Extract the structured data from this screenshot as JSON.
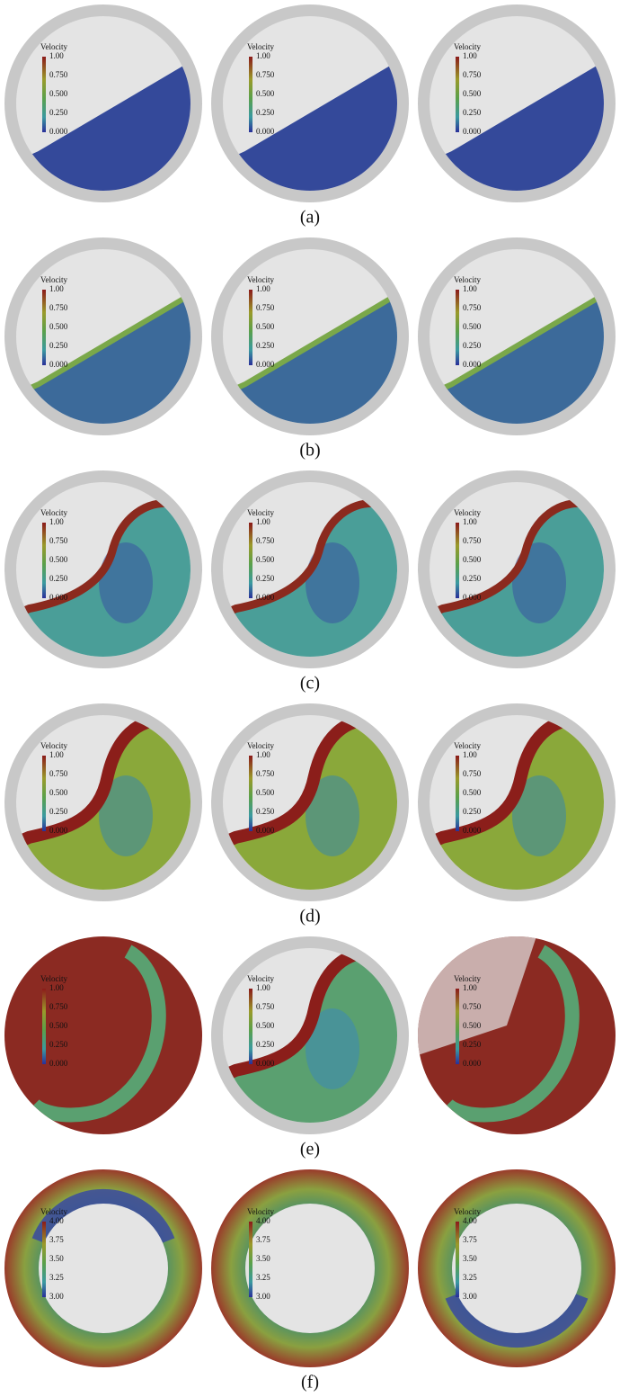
{
  "rows": [
    {
      "label": "(a)",
      "panels": [
        {
          "legend_title": "Velocity",
          "legend_ticks": [
            "1.00",
            "0.750",
            "0.500",
            "0.250",
            "0.000"
          ]
        },
        {
          "legend_title": "Velocity",
          "legend_ticks": [
            "1.00",
            "0.750",
            "0.500",
            "0.250",
            "0.000"
          ]
        },
        {
          "legend_title": "Velocity",
          "legend_ticks": [
            "1.00",
            "0.750",
            "0.500",
            "0.250",
            "0.000"
          ]
        }
      ]
    },
    {
      "label": "(b)",
      "panels": [
        {
          "legend_title": "Velocity",
          "legend_ticks": [
            "1.00",
            "0.750",
            "0.500",
            "0.250",
            "0.000"
          ]
        },
        {
          "legend_title": "Velocity",
          "legend_ticks": [
            "1.00",
            "0.750",
            "0.500",
            "0.250",
            "0.000"
          ]
        },
        {
          "legend_title": "Velocity",
          "legend_ticks": [
            "1.00",
            "0.750",
            "0.500",
            "0.250",
            "0.000"
          ]
        }
      ]
    },
    {
      "label": "(c)",
      "panels": [
        {
          "legend_title": "Velocity",
          "legend_ticks": [
            "1.00",
            "0.750",
            "0.500",
            "0.250",
            "0.000"
          ]
        },
        {
          "legend_title": "Velocity",
          "legend_ticks": [
            "1.00",
            "0.750",
            "0.500",
            "0.250",
            "0.000"
          ]
        },
        {
          "legend_title": "Velocity",
          "legend_ticks": [
            "1.00",
            "0.750",
            "0.500",
            "0.250",
            "0.000"
          ]
        }
      ]
    },
    {
      "label": "(d)",
      "panels": [
        {
          "legend_title": "Velocity",
          "legend_ticks": [
            "1.00",
            "0.750",
            "0.500",
            "0.250",
            "0.000"
          ]
        },
        {
          "legend_title": "Velocity",
          "legend_ticks": [
            "1.00",
            "0.750",
            "0.500",
            "0.250",
            "0.000"
          ]
        },
        {
          "legend_title": "Velocity",
          "legend_ticks": [
            "1.00",
            "0.750",
            "0.500",
            "0.250",
            "0.000"
          ]
        }
      ]
    },
    {
      "label": "(e)",
      "panels": [
        {
          "legend_title": "Velocity",
          "legend_ticks": [
            "1.00",
            "0.750",
            "0.500",
            "0.250",
            "0.000"
          ]
        },
        {
          "legend_title": "Velocity",
          "legend_ticks": [
            "1.00",
            "0.750",
            "0.500",
            "0.250",
            "0.000"
          ]
        },
        {
          "legend_title": "Velocity",
          "legend_ticks": [
            "1.00",
            "0.750",
            "0.500",
            "0.250",
            "0.000"
          ]
        }
      ]
    },
    {
      "label": "(f)",
      "panels": [
        {
          "legend_title": "Velocity",
          "legend_ticks": [
            "4.00",
            "3.75",
            "3.50",
            "3.25",
            "3.00"
          ]
        },
        {
          "legend_title": "Velocity",
          "legend_ticks": [
            "4.00",
            "3.75",
            "3.50",
            "3.25",
            "3.00"
          ]
        },
        {
          "legend_title": "Velocity",
          "legend_ticks": [
            "4.00",
            "3.75",
            "3.50",
            "3.25",
            "3.00"
          ]
        }
      ]
    }
  ]
}
